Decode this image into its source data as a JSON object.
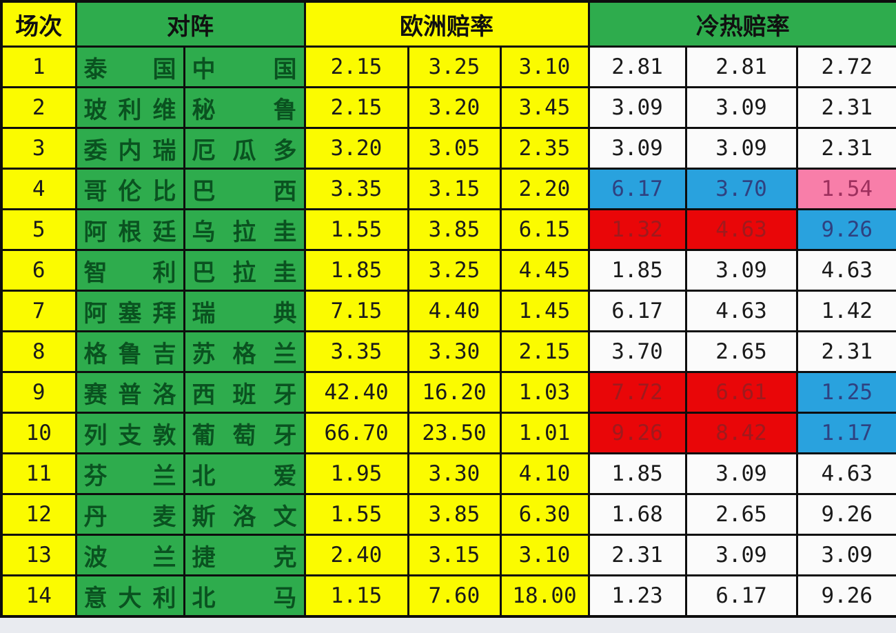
{
  "colors": {
    "yellow": "#FBFB00",
    "green": "#2EAC4D",
    "team_text": "#0A5220",
    "border": "#0D0D0D",
    "white_cell": "#FBFBFB",
    "number_text": "#1A1A1A",
    "blue_bg": "#29A2DE",
    "blue_text": "#2F4180",
    "pink_bg": "#F87EA9",
    "pink_text": "#9D2F5D",
    "red_bg": "#E90608",
    "red_text": "#9F1A1D"
  },
  "table": {
    "headers": {
      "match": "场次",
      "matchup": "对阵",
      "euro": "欧洲赔率",
      "coldhot": "冷热赔率"
    },
    "rows": [
      {
        "no": "1",
        "home": "泰国",
        "away": "中国",
        "euro": [
          "2.15",
          "3.25",
          "3.10"
        ],
        "coldhot": [
          {
            "v": "2.81",
            "s": "plain"
          },
          {
            "v": "2.81",
            "s": "plain"
          },
          {
            "v": "2.72",
            "s": "plain"
          }
        ]
      },
      {
        "no": "2",
        "home": "玻利维",
        "away": "秘鲁",
        "euro": [
          "2.15",
          "3.20",
          "3.45"
        ],
        "coldhot": [
          {
            "v": "3.09",
            "s": "plain"
          },
          {
            "v": "3.09",
            "s": "plain"
          },
          {
            "v": "2.31",
            "s": "plain"
          }
        ]
      },
      {
        "no": "3",
        "home": "委内瑞",
        "away": "厄瓜多",
        "euro": [
          "3.20",
          "3.05",
          "2.35"
        ],
        "coldhot": [
          {
            "v": "3.09",
            "s": "plain"
          },
          {
            "v": "3.09",
            "s": "plain"
          },
          {
            "v": "2.31",
            "s": "plain"
          }
        ]
      },
      {
        "no": "4",
        "home": "哥伦比",
        "away": "巴西",
        "euro": [
          "3.35",
          "3.15",
          "2.20"
        ],
        "coldhot": [
          {
            "v": "6.17",
            "s": "blue"
          },
          {
            "v": "3.70",
            "s": "blue"
          },
          {
            "v": "1.54",
            "s": "pink"
          }
        ]
      },
      {
        "no": "5",
        "home": "阿根廷",
        "away": "乌拉圭",
        "euro": [
          "1.55",
          "3.85",
          "6.15"
        ],
        "coldhot": [
          {
            "v": "1.32",
            "s": "red"
          },
          {
            "v": "4.63",
            "s": "red"
          },
          {
            "v": "9.26",
            "s": "blue"
          }
        ]
      },
      {
        "no": "6",
        "home": "智利",
        "away": "巴拉圭",
        "euro": [
          "1.85",
          "3.25",
          "4.45"
        ],
        "coldhot": [
          {
            "v": "1.85",
            "s": "plain"
          },
          {
            "v": "3.09",
            "s": "plain"
          },
          {
            "v": "4.63",
            "s": "plain"
          }
        ]
      },
      {
        "no": "7",
        "home": "阿塞拜",
        "away": "瑞典",
        "euro": [
          "7.15",
          "4.40",
          "1.45"
        ],
        "coldhot": [
          {
            "v": "6.17",
            "s": "plain"
          },
          {
            "v": "4.63",
            "s": "plain"
          },
          {
            "v": "1.42",
            "s": "plain"
          }
        ]
      },
      {
        "no": "8",
        "home": "格鲁吉",
        "away": "苏格兰",
        "euro": [
          "3.35",
          "3.30",
          "2.15"
        ],
        "coldhot": [
          {
            "v": "3.70",
            "s": "plain"
          },
          {
            "v": "2.65",
            "s": "plain"
          },
          {
            "v": "2.31",
            "s": "plain"
          }
        ]
      },
      {
        "no": "9",
        "home": "赛普洛",
        "away": "西班牙",
        "euro": [
          "42.40",
          "16.20",
          "1.03"
        ],
        "coldhot": [
          {
            "v": "7.72",
            "s": "red"
          },
          {
            "v": "6.61",
            "s": "red"
          },
          {
            "v": "1.25",
            "s": "blue"
          }
        ]
      },
      {
        "no": "10",
        "home": "列支敦",
        "away": "葡萄牙",
        "euro": [
          "66.70",
          "23.50",
          "1.01"
        ],
        "coldhot": [
          {
            "v": "9.26",
            "s": "red"
          },
          {
            "v": "8.42",
            "s": "red"
          },
          {
            "v": "1.17",
            "s": "blue"
          }
        ]
      },
      {
        "no": "11",
        "home": "芬兰",
        "away": "北爱",
        "euro": [
          "1.95",
          "3.30",
          "4.10"
        ],
        "coldhot": [
          {
            "v": "1.85",
            "s": "plain"
          },
          {
            "v": "3.09",
            "s": "plain"
          },
          {
            "v": "4.63",
            "s": "plain"
          }
        ]
      },
      {
        "no": "12",
        "home": "丹麦",
        "away": "斯洛文",
        "euro": [
          "1.55",
          "3.85",
          "6.30"
        ],
        "coldhot": [
          {
            "v": "1.68",
            "s": "plain"
          },
          {
            "v": "2.65",
            "s": "plain"
          },
          {
            "v": "9.26",
            "s": "plain"
          }
        ]
      },
      {
        "no": "13",
        "home": "波兰",
        "away": "捷克",
        "euro": [
          "2.40",
          "3.15",
          "3.10"
        ],
        "coldhot": [
          {
            "v": "2.31",
            "s": "plain"
          },
          {
            "v": "3.09",
            "s": "plain"
          },
          {
            "v": "3.09",
            "s": "plain"
          }
        ]
      },
      {
        "no": "14",
        "home": "意大利",
        "away": "北马",
        "euro": [
          "1.15",
          "7.60",
          "18.00"
        ],
        "coldhot": [
          {
            "v": "1.23",
            "s": "plain"
          },
          {
            "v": "6.17",
            "s": "plain"
          },
          {
            "v": "9.26",
            "s": "plain"
          }
        ]
      }
    ]
  }
}
